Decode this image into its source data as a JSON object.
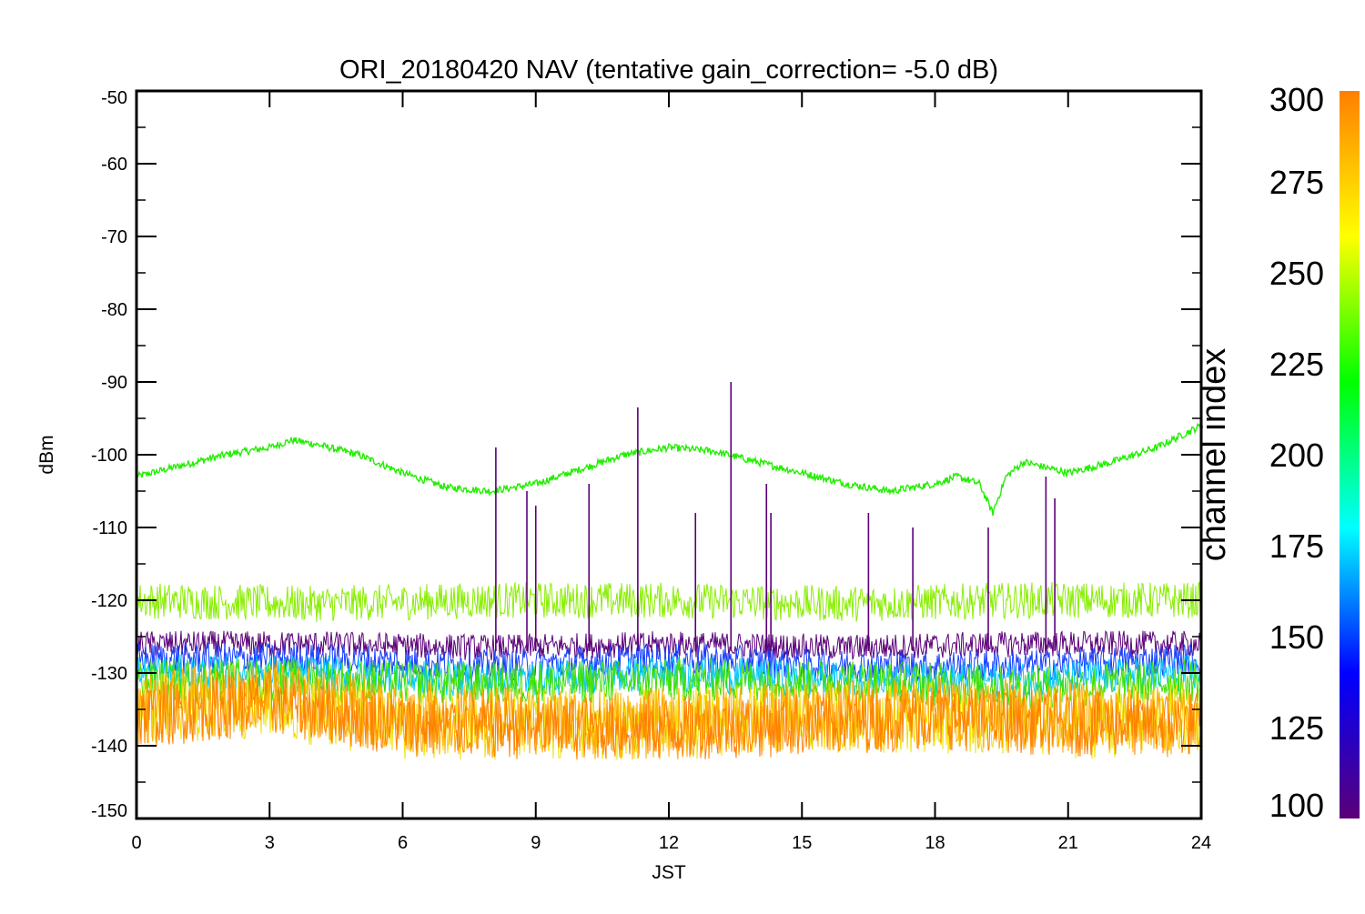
{
  "chart_data": {
    "type": "line",
    "title": "ORI_20180420 NAV (tentative gain_correction= -5.0 dB)",
    "xlabel": "JST",
    "ylabel": "dBm",
    "xlim": [
      0,
      24
    ],
    "ylim": [
      -150,
      -50
    ],
    "xticks": [
      0,
      3,
      6,
      9,
      12,
      15,
      18,
      21,
      24
    ],
    "yticks": [
      -50,
      -60,
      -70,
      -80,
      -90,
      -100,
      -110,
      -120,
      -130,
      -140,
      -150
    ],
    "grid": false,
    "colorbar": {
      "label": "channel index",
      "range": [
        100,
        300
      ],
      "ticks": [
        100,
        125,
        150,
        175,
        200,
        225,
        250,
        275,
        300
      ],
      "colormap": [
        "#5a0078",
        "#0000ff",
        "#00ffff",
        "#00ff00",
        "#ffff00",
        "#ff7f00"
      ]
    },
    "series": [
      {
        "channel": 215,
        "color": "#22ee00",
        "x": [
          0,
          1,
          2,
          3,
          3.5,
          4,
          5,
          6,
          7,
          8,
          9,
          10,
          11,
          12,
          13,
          14,
          15,
          16,
          17,
          18,
          18.5,
          19,
          19.3,
          19.6,
          20,
          21,
          22,
          23,
          24
        ],
        "y": [
          -103,
          -101.5,
          -100,
          -99,
          -98,
          -98.5,
          -100,
          -102.5,
          -104.5,
          -105,
          -104,
          -102,
          -100,
          -99,
          -99.5,
          -101,
          -102.5,
          -104,
          -105,
          -104,
          -103,
          -104,
          -108,
          -103,
          -101,
          -102.5,
          -101,
          -99,
          -96
        ]
      },
      {
        "channel": 255,
        "color": "#88ee00",
        "x": [
          0,
          4,
          8,
          12,
          16,
          20,
          24
        ],
        "y": [
          -120,
          -120.5,
          -120,
          -120,
          -120.5,
          -120,
          -120
        ]
      },
      {
        "channel": 110,
        "color": "#5a0078",
        "x": [
          0,
          4,
          8,
          12,
          16,
          20,
          24
        ],
        "y": [
          -126,
          -126,
          -126.5,
          -126,
          -126.5,
          -126,
          -126
        ]
      },
      {
        "channel": 140,
        "color": "#1840ff",
        "x": [
          0,
          4,
          8,
          12,
          16,
          20,
          24
        ],
        "y": [
          -128,
          -128,
          -129,
          -128,
          -129,
          -129,
          -128
        ]
      },
      {
        "channel": 180,
        "color": "#00c8ff",
        "x": [
          0,
          4,
          8,
          12,
          16,
          20,
          24
        ],
        "y": [
          -130,
          -130,
          -131,
          -130,
          -131,
          -131,
          -130
        ]
      },
      {
        "channel": 225,
        "color": "#40e000",
        "x": [
          0,
          4,
          8,
          12,
          16,
          20,
          24
        ],
        "y": [
          -131,
          -131,
          -131.5,
          -131,
          -131,
          -132,
          -131
        ]
      },
      {
        "channel": 270,
        "color": "#f0e000",
        "x": [
          0,
          3,
          6,
          9,
          12,
          15,
          18,
          21,
          24
        ],
        "y": [
          -135,
          -134,
          -137,
          -137,
          -137,
          -136,
          -136,
          -137,
          -136
        ]
      },
      {
        "channel": 290,
        "color": "#ffaa00",
        "x": [
          0,
          3,
          6,
          9,
          12,
          15,
          18,
          21,
          24
        ],
        "y": [
          -135,
          -133,
          -136,
          -137,
          -137,
          -136,
          -135,
          -136,
          -137
        ]
      },
      {
        "channel": 300,
        "color": "#ff8000",
        "x": [
          0,
          3,
          6,
          9,
          12,
          15,
          18,
          21,
          24
        ],
        "y": [
          -136,
          -134,
          -137,
          -137.5,
          -137.5,
          -137,
          -136,
          -137,
          -137
        ]
      }
    ],
    "spikes": [
      {
        "x": 8.1,
        "y": -99
      },
      {
        "x": 8.8,
        "y": -105
      },
      {
        "x": 9.0,
        "y": -107
      },
      {
        "x": 10.2,
        "y": -104
      },
      {
        "x": 11.3,
        "y": -93.5
      },
      {
        "x": 12.6,
        "y": -108
      },
      {
        "x": 13.4,
        "y": -90
      },
      {
        "x": 14.2,
        "y": -104
      },
      {
        "x": 14.3,
        "y": -108
      },
      {
        "x": 16.5,
        "y": -108
      },
      {
        "x": 17.5,
        "y": -110
      },
      {
        "x": 19.2,
        "y": -110
      },
      {
        "x": 20.5,
        "y": -103
      },
      {
        "x": 20.7,
        "y": -106
      }
    ]
  }
}
